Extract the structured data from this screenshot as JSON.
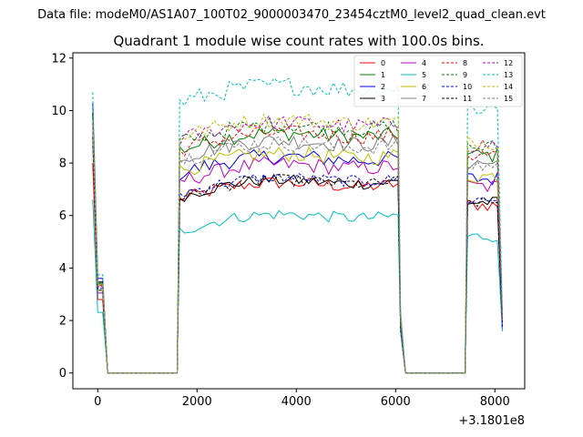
{
  "figure": {
    "suptitle": "Data file: modeM0/AS1A07_100T02_9000003470_23454cztM0_level2_quad_clean.evt"
  },
  "chart_data": {
    "type": "line",
    "title": "Quadrant 1 module wise count rates with 100.0s bins.",
    "xlabel": "",
    "ylabel": "",
    "x_offset_label": "+3.1801e8",
    "xlim": [
      -500,
      8600
    ],
    "ylim": [
      -0.6,
      12.2
    ],
    "xticks": [
      0,
      2000,
      4000,
      6000,
      8000
    ],
    "xtick_labels": [
      "0",
      "2000",
      "4000",
      "6000",
      "8000"
    ],
    "yticks": [
      0,
      2,
      4,
      6,
      8,
      10,
      12
    ],
    "ytick_labels": [
      "0",
      "2",
      "4",
      "6",
      "8",
      "10",
      "12"
    ],
    "grid": false,
    "legend_position": "top-right",
    "legend_columns": 4,
    "segments": [
      {
        "start": -100,
        "end": 1650,
        "step": 100,
        "active_from": 200
      },
      {
        "start": 1650,
        "end": 6100,
        "step": 100
      },
      {
        "start": 6100,
        "end": 7450,
        "step": 100,
        "active_from": 100000
      },
      {
        "start": 7450,
        "end": 8150,
        "step": 100
      }
    ],
    "series": [
      {
        "name": "0",
        "color": "#ff0000",
        "dash": "solid",
        "level": 6.6,
        "start": 8.0,
        "end": 1.8,
        "noise": 0.25
      },
      {
        "name": "1",
        "color": "#008000",
        "dash": "solid",
        "level": 8.5,
        "start": 9.7,
        "end": 2.0,
        "noise": 0.3
      },
      {
        "name": "2",
        "color": "#0000ff",
        "dash": "solid",
        "level": 7.6,
        "start": 10.3,
        "end": 1.6,
        "noise": 0.3
      },
      {
        "name": "3",
        "color": "#000000",
        "dash": "solid",
        "level": 6.7,
        "start": 9.9,
        "end": 2.0,
        "noise": 0.22
      },
      {
        "name": "4",
        "color": "#bf00bf",
        "dash": "solid",
        "level": 7.3,
        "start": 8.7,
        "end": 2.1,
        "noise": 0.3
      },
      {
        "name": "5",
        "color": "#00bfbf",
        "dash": "solid",
        "level": 5.4,
        "start": 6.6,
        "end": 1.6,
        "noise": 0.22
      },
      {
        "name": "6",
        "color": "#bfbf00",
        "dash": "solid",
        "level": 7.7,
        "start": 9.0,
        "end": 2.3,
        "noise": 0.3
      },
      {
        "name": "7",
        "color": "#808080",
        "dash": "solid",
        "level": 8.2,
        "start": 9.6,
        "end": 2.0,
        "noise": 0.3
      },
      {
        "name": "8",
        "color": "#ff0000",
        "dash": "dashed",
        "level": 8.5,
        "start": 9.5,
        "end": 2.0,
        "noise": 0.3
      },
      {
        "name": "9",
        "color": "#008000",
        "dash": "dashed",
        "level": 8.8,
        "start": 9.8,
        "end": 2.1,
        "noise": 0.3
      },
      {
        "name": "10",
        "color": "#0000ff",
        "dash": "dashed",
        "level": 6.8,
        "start": 9.2,
        "end": 1.7,
        "noise": 0.22
      },
      {
        "name": "11",
        "color": "#000000",
        "dash": "dashed",
        "level": 6.7,
        "start": 9.0,
        "end": 1.9,
        "noise": 0.22
      },
      {
        "name": "12",
        "color": "#bf00bf",
        "dash": "dashed",
        "level": 8.9,
        "start": 9.4,
        "end": 2.0,
        "noise": 0.3
      },
      {
        "name": "13",
        "color": "#00bfbf",
        "dash": "dashed",
        "level": 10.3,
        "start": 10.7,
        "end": 2.4,
        "noise": 0.35
      },
      {
        "name": "14",
        "color": "#bfbf00",
        "dash": "dashed",
        "level": 9.0,
        "start": 9.6,
        "end": 2.2,
        "noise": 0.3
      },
      {
        "name": "15",
        "color": "#808080",
        "dash": "dashed",
        "level": 8.1,
        "start": 9.7,
        "end": 2.0,
        "noise": 0.3
      }
    ]
  }
}
